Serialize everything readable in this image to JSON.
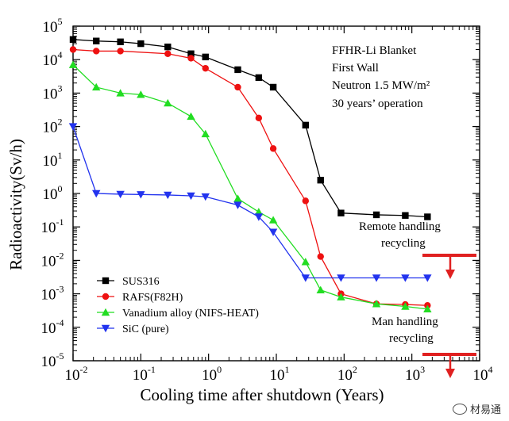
{
  "chart_data": {
    "type": "line",
    "title": "",
    "xlabel": "Cooling time after shutdown (Years)",
    "ylabel": "Radioactivity(Sv/h)",
    "x_scale": "log",
    "y_scale": "log",
    "xlim": [
      0.01,
      10000
    ],
    "ylim": [
      1e-05,
      100000
    ],
    "x_ticks": [
      {
        "base": "10",
        "exp": "-2",
        "value": 0.01
      },
      {
        "base": "10",
        "exp": "-1",
        "value": 0.1
      },
      {
        "base": "10",
        "exp": "0",
        "value": 1
      },
      {
        "base": "10",
        "exp": "1",
        "value": 10
      },
      {
        "base": "10",
        "exp": "2",
        "value": 100
      },
      {
        "base": "10",
        "exp": "3",
        "value": 1000
      },
      {
        "base": "10",
        "exp": "4",
        "value": 10000
      }
    ],
    "y_ticks": [
      {
        "base": "10",
        "exp": "5",
        "value": 100000
      },
      {
        "base": "10",
        "exp": "4",
        "value": 10000
      },
      {
        "base": "10",
        "exp": "3",
        "value": 1000
      },
      {
        "base": "10",
        "exp": "2",
        "value": 100
      },
      {
        "base": "10",
        "exp": "1",
        "value": 10
      },
      {
        "base": "10",
        "exp": "0",
        "value": 1
      },
      {
        "base": "10",
        "exp": "-1",
        "value": 0.1
      },
      {
        "base": "10",
        "exp": "-2",
        "value": 0.01
      },
      {
        "base": "10",
        "exp": "-3",
        "value": 0.001
      },
      {
        "base": "10",
        "exp": "-4",
        "value": 0.0001
      },
      {
        "base": "10",
        "exp": "-5",
        "value": 1e-05
      }
    ],
    "annotation_lines": [
      "FFHR-Li Blanket",
      "First Wall",
      "Neutron 1.5 MW/m²",
      "30 years’ operation"
    ],
    "thresholds": [
      {
        "label_lines": [
          "Remote handling",
          "recycling"
        ],
        "value": 0.01
      },
      {
        "label_lines": [
          "Man handling",
          "recycling"
        ],
        "value": 1e-05
      }
    ],
    "threshold_color": "#e02020",
    "legend_position": "lower-left",
    "series": [
      {
        "name": "SUS316",
        "color": "#000000",
        "marker": "square",
        "x": [
          0.01,
          0.022,
          0.05,
          0.1,
          0.25,
          0.55,
          0.9,
          2.7,
          5.5,
          9,
          27,
          45,
          90,
          300,
          800,
          1700
        ],
        "y": [
          40000,
          36000,
          34000,
          30000,
          24000,
          15000,
          12000,
          5000,
          2900,
          1500,
          110,
          2.5,
          0.26,
          0.23,
          0.22,
          0.2
        ]
      },
      {
        "name": "RAFS(F82H)",
        "color": "#ee1111",
        "marker": "circle",
        "x": [
          0.01,
          0.022,
          0.05,
          0.25,
          0.55,
          0.9,
          2.7,
          5.5,
          9,
          27,
          45,
          90,
          300,
          800,
          1700
        ],
        "y": [
          20000,
          18000,
          18000,
          15000,
          11000,
          5500,
          1500,
          180,
          22,
          0.6,
          0.013,
          0.001,
          0.0005,
          0.00048,
          0.00045
        ]
      },
      {
        "name": "Vanadium alloy (NIFS-HEAT)",
        "color": "#22dd22",
        "marker": "triangle-up",
        "x": [
          0.01,
          0.022,
          0.05,
          0.1,
          0.25,
          0.55,
          0.9,
          2.7,
          5.5,
          9,
          27,
          45,
          90,
          300,
          800,
          1700
        ],
        "y": [
          7000,
          1500,
          1000,
          900,
          500,
          200,
          60,
          0.7,
          0.28,
          0.16,
          0.009,
          0.0013,
          0.0008,
          0.0005,
          0.00042,
          0.00035
        ]
      },
      {
        "name": "SiC (pure)",
        "color": "#2233ee",
        "marker": "triangle-down",
        "x": [
          0.01,
          0.022,
          0.05,
          0.1,
          0.25,
          0.55,
          0.9,
          2.7,
          5.5,
          9,
          27,
          90,
          300,
          800,
          1700
        ],
        "y": [
          100,
          1.0,
          0.95,
          0.93,
          0.9,
          0.85,
          0.8,
          0.45,
          0.2,
          0.07,
          0.003,
          0.003,
          0.003,
          0.003,
          0.003
        ]
      }
    ]
  },
  "watermark": {
    "text": "材易通",
    "icon": "wechat-icon"
  }
}
